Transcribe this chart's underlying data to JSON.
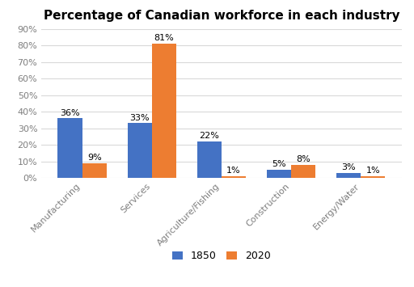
{
  "title": "Percentage of Canadian workforce in each industry",
  "categories": [
    "Manufacturing",
    "Services",
    "Agriculture/Fishing",
    "Construction",
    "Energy/Water"
  ],
  "values_1850": [
    36,
    33,
    22,
    5,
    3
  ],
  "values_2020": [
    9,
    81,
    1,
    8,
    1
  ],
  "color_1850": "#4472C4",
  "color_2020": "#ED7D31",
  "legend_labels": [
    "1850",
    "2020"
  ],
  "ylim": [
    0,
    90
  ],
  "yticks": [
    0,
    10,
    20,
    30,
    40,
    50,
    60,
    70,
    80,
    90
  ],
  "bar_width": 0.35,
  "title_fontsize": 11,
  "label_fontsize": 8,
  "tick_fontsize": 8,
  "legend_fontsize": 9,
  "background_color": "#ffffff"
}
